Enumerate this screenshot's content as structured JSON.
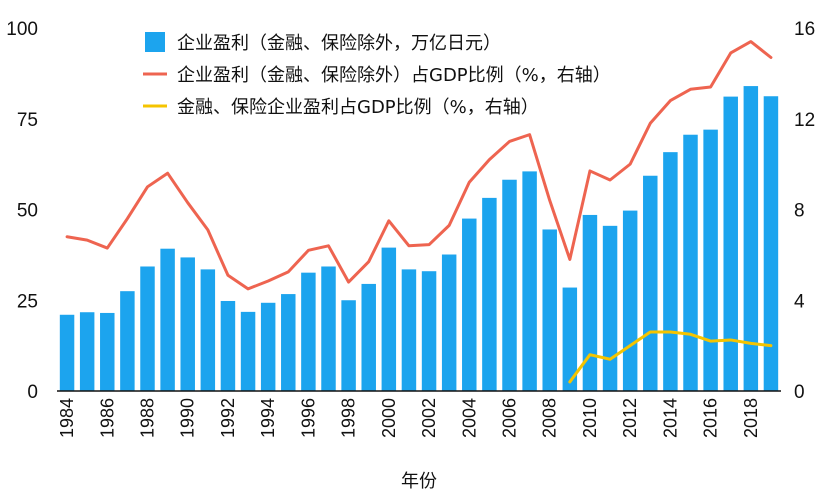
{
  "chart_data": {
    "type": "bar",
    "xlabel": "年份",
    "ylim": [
      0,
      100
    ],
    "y2lim": [
      0,
      16
    ],
    "yticks": [
      "0",
      "25",
      "50",
      "75",
      "100"
    ],
    "y2ticks": [
      "0",
      "4",
      "8",
      "12",
      "16"
    ],
    "x": [
      "1984",
      "1985",
      "1986",
      "1987",
      "1988",
      "1989",
      "1990",
      "1991",
      "1992",
      "1993",
      "1994",
      "1995",
      "1996",
      "1997",
      "1998",
      "1999",
      "2000",
      "2001",
      "2002",
      "2003",
      "2004",
      "2005",
      "2006",
      "2007",
      "2008",
      "2009",
      "2010",
      "2011",
      "2012",
      "2013",
      "2014",
      "2015",
      "2016",
      "2017",
      "2018",
      "2019"
    ],
    "xtick_labels": [
      "1984",
      "1986",
      "1988",
      "1990",
      "1992",
      "1994",
      "1996",
      "1998",
      "2000",
      "2002",
      "2004",
      "2006",
      "2008",
      "2010",
      "2012",
      "2014",
      "2016",
      "2018"
    ],
    "legend_position": "top-center",
    "grid": false,
    "series": [
      {
        "name": "企业盈利（金融、保险除外，万亿日元）",
        "type": "bar",
        "axis": "left",
        "color": "#1ca4ee",
        "values": [
          21.0,
          21.7,
          21.5,
          27.5,
          34.3,
          39.2,
          36.8,
          33.5,
          24.8,
          21.8,
          24.3,
          26.7,
          32.6,
          34.3,
          25.0,
          29.5,
          39.5,
          33.5,
          33.0,
          37.6,
          47.5,
          53.2,
          58.2,
          60.5,
          44.5,
          28.5,
          48.5,
          45.5,
          49.7,
          59.3,
          65.8,
          70.6,
          72.0,
          81.1,
          84.0,
          81.2
        ]
      },
      {
        "name": "企业盈利（金融、保险除外）占GDP比例（%，右轴）",
        "type": "line",
        "axis": "right",
        "color": "#ee6450",
        "values": [
          6.8,
          6.65,
          6.3,
          7.6,
          9.0,
          9.6,
          8.3,
          7.1,
          5.1,
          4.5,
          4.85,
          5.25,
          6.2,
          6.4,
          4.8,
          5.7,
          7.5,
          6.4,
          6.45,
          7.3,
          9.2,
          10.2,
          11.0,
          11.3,
          8.4,
          5.8,
          9.7,
          9.3,
          10.0,
          11.8,
          12.8,
          13.3,
          13.4,
          14.9,
          15.4,
          14.7
        ]
      },
      {
        "name": "金融、保险企业盈利占GDP比例（%，右轴）",
        "type": "line",
        "axis": "right",
        "color": "#f5c400",
        "values": [
          null,
          null,
          null,
          null,
          null,
          null,
          null,
          null,
          null,
          null,
          null,
          null,
          null,
          null,
          null,
          null,
          null,
          null,
          null,
          null,
          null,
          null,
          null,
          null,
          null,
          0.4,
          1.6,
          1.4,
          2.0,
          2.6,
          2.6,
          2.5,
          2.2,
          2.25,
          2.1,
          2.0
        ]
      }
    ]
  }
}
